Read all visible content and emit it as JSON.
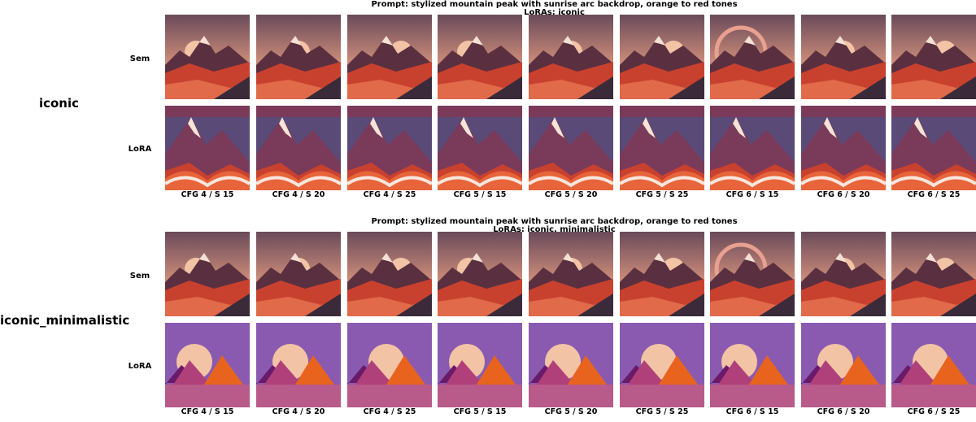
{
  "sections": [
    {
      "label": "iconic",
      "prompt": "Prompt: stylized mountain peak with sunrise arc backdrop, orange to red tones",
      "loras": "LoRAs: iconic",
      "rows": [
        {
          "label": "Sem",
          "style": "sem"
        },
        {
          "label": "LoRA",
          "style": "lora_iconic"
        }
      ]
    },
    {
      "label": "iconic_minimalistic",
      "prompt": "Prompt: stylized mountain peak with sunrise arc backdrop, orange to red tones",
      "loras": "LoRAs: iconic, minimalistic",
      "rows": [
        {
          "label": "Sem",
          "style": "sem"
        },
        {
          "label": "LoRA",
          "style": "lora_minimal"
        }
      ]
    }
  ],
  "columns": [
    "CFG 4 / S 15",
    "CFG 4 / S 20",
    "CFG 4 / S 25",
    "CFG 5 / S 15",
    "CFG 5 / S 20",
    "CFG 5 / S 25",
    "CFG 6 / S 15",
    "CFG 6 / S 20",
    "CFG 6 / S 25"
  ],
  "colors": {
    "sky_warm": "#c98a78",
    "sky_cool": "#5a4a78",
    "mountain_red": "#c8412f",
    "mountain_dark": "#5a3040",
    "sun": "#f3c3a6",
    "minimal_purple": "#8a5ab0",
    "minimal_orange": "#e8641e"
  }
}
